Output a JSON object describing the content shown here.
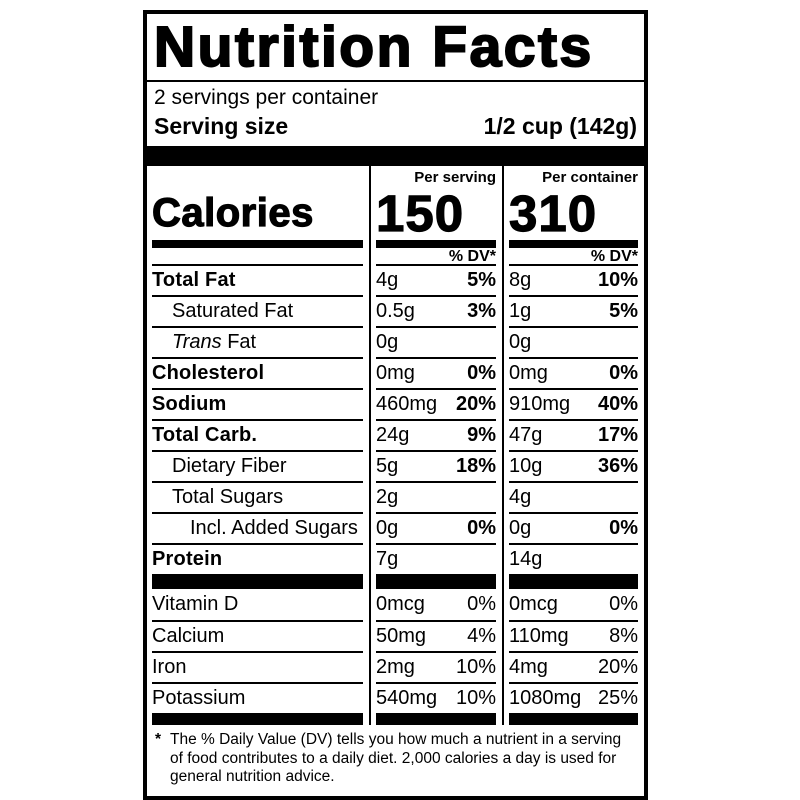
{
  "label": {
    "title": "Nutrition Facts",
    "servings_per_container": "2 servings per container",
    "serving_size": {
      "label": "Serving size",
      "value": "1/2 cup (142g)"
    },
    "calories": {
      "label": "Calories",
      "columns": [
        {
          "header": "Per serving",
          "value": "150",
          "dv_header": "% DV*"
        },
        {
          "header": "Per container",
          "value": "310",
          "dv_header": "% DV*"
        }
      ]
    },
    "nutrients": [
      {
        "name": "Total Fat",
        "bold": true,
        "indent": 0,
        "values": [
          {
            "amount": "4g",
            "dv": "5%"
          },
          {
            "amount": "8g",
            "dv": "10%"
          }
        ]
      },
      {
        "name": "Saturated Fat",
        "bold": false,
        "indent": 1,
        "values": [
          {
            "amount": "0.5g",
            "dv": "3%"
          },
          {
            "amount": "1g",
            "dv": "5%"
          }
        ]
      },
      {
        "name": "Trans Fat",
        "italic_part": "Trans",
        "rest_part": " Fat",
        "bold": false,
        "indent": 1,
        "values": [
          {
            "amount": "0g",
            "dv": ""
          },
          {
            "amount": "0g",
            "dv": ""
          }
        ]
      },
      {
        "name": "Cholesterol",
        "bold": true,
        "indent": 0,
        "values": [
          {
            "amount": "0mg",
            "dv": "0%"
          },
          {
            "amount": "0mg",
            "dv": "0%"
          }
        ]
      },
      {
        "name": "Sodium",
        "bold": true,
        "indent": 0,
        "values": [
          {
            "amount": "460mg",
            "dv": "20%"
          },
          {
            "amount": "910mg",
            "dv": "40%"
          }
        ]
      },
      {
        "name": "Total Carb.",
        "bold": true,
        "indent": 0,
        "values": [
          {
            "amount": "24g",
            "dv": "9%"
          },
          {
            "amount": "47g",
            "dv": "17%"
          }
        ]
      },
      {
        "name": "Dietary Fiber",
        "bold": false,
        "indent": 1,
        "values": [
          {
            "amount": "5g",
            "dv": "18%"
          },
          {
            "amount": "10g",
            "dv": "36%"
          }
        ]
      },
      {
        "name": "Total Sugars",
        "bold": false,
        "indent": 1,
        "values": [
          {
            "amount": "2g",
            "dv": ""
          },
          {
            "amount": "4g",
            "dv": ""
          }
        ]
      },
      {
        "name": "Incl. Added Sugars",
        "bold": false,
        "indent": 2,
        "values": [
          {
            "amount": "0g",
            "dv": "0%"
          },
          {
            "amount": "0g",
            "dv": "0%"
          }
        ]
      },
      {
        "name": "Protein",
        "bold": true,
        "indent": 0,
        "values": [
          {
            "amount": "7g",
            "dv": ""
          },
          {
            "amount": "14g",
            "dv": ""
          }
        ]
      }
    ],
    "micronutrients": [
      {
        "name": "Vitamin D",
        "values": [
          {
            "amount": "0mcg",
            "dv": "0%"
          },
          {
            "amount": "0mcg",
            "dv": "0%"
          }
        ]
      },
      {
        "name": "Calcium",
        "values": [
          {
            "amount": "50mg",
            "dv": "4%"
          },
          {
            "amount": "110mg",
            "dv": "8%"
          }
        ]
      },
      {
        "name": "Iron",
        "values": [
          {
            "amount": "2mg",
            "dv": "10%"
          },
          {
            "amount": "4mg",
            "dv": "20%"
          }
        ]
      },
      {
        "name": "Potassium",
        "values": [
          {
            "amount": "540mg",
            "dv": "10%"
          },
          {
            "amount": "1080mg",
            "dv": "25%"
          }
        ]
      }
    ],
    "footnote": {
      "marker": "*",
      "text": "The % Daily Value (DV) tells you how much a nutrient in a serving of food contributes to a daily diet. 2,000 calories a day is used for general nutrition advice."
    },
    "colors": {
      "ink": "#000000",
      "background": "#ffffff"
    }
  }
}
